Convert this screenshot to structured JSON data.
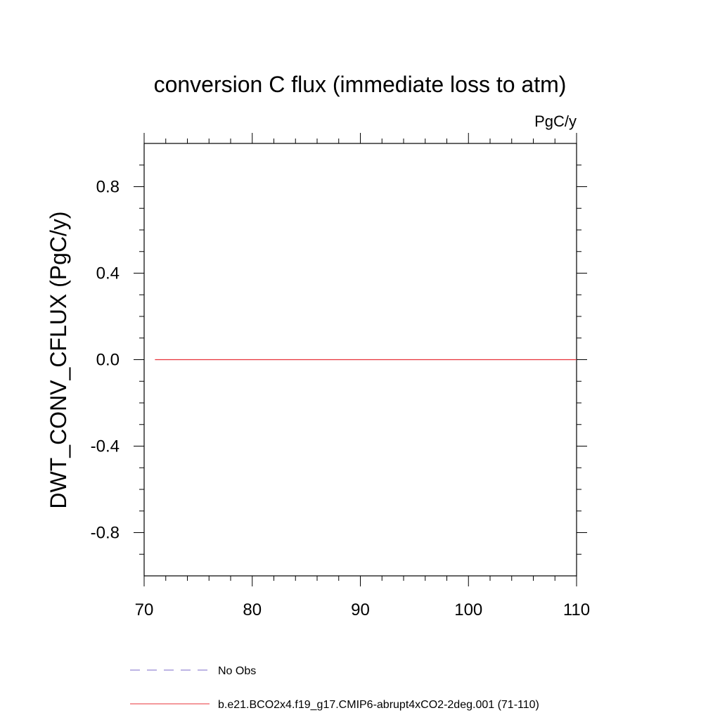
{
  "chart_data": {
    "type": "line",
    "title": "conversion C flux (immediate loss to atm)",
    "units_label": "PgC/y",
    "xlabel": "",
    "ylabel": "DWT_CONV_CFLUX  (PgC/y)",
    "xlim": [
      70,
      110
    ],
    "ylim": [
      -1.0,
      1.0
    ],
    "x_ticks": [
      70,
      80,
      90,
      100,
      110
    ],
    "x_tick_labels": [
      "70",
      "80",
      "90",
      "100",
      "110"
    ],
    "y_ticks": [
      0.8,
      0.4,
      0.0,
      -0.4,
      -0.8
    ],
    "y_tick_labels": [
      "0.8",
      "0.4",
      "0.0",
      "-0.4",
      "-0.8"
    ],
    "grid": false,
    "legend_position": "bottom",
    "series": [
      {
        "name": "No Obs",
        "color": "#7b68c8",
        "style": "dashed",
        "x": [],
        "y": []
      },
      {
        "name": "b.e21.BCO2x4.f19_g17.CMIP6-abrupt4xCO2-2deg.001 (71-110)",
        "color": "#e8333a",
        "style": "solid",
        "x": [
          71,
          110
        ],
        "y": [
          0.0,
          0.0
        ]
      }
    ]
  }
}
